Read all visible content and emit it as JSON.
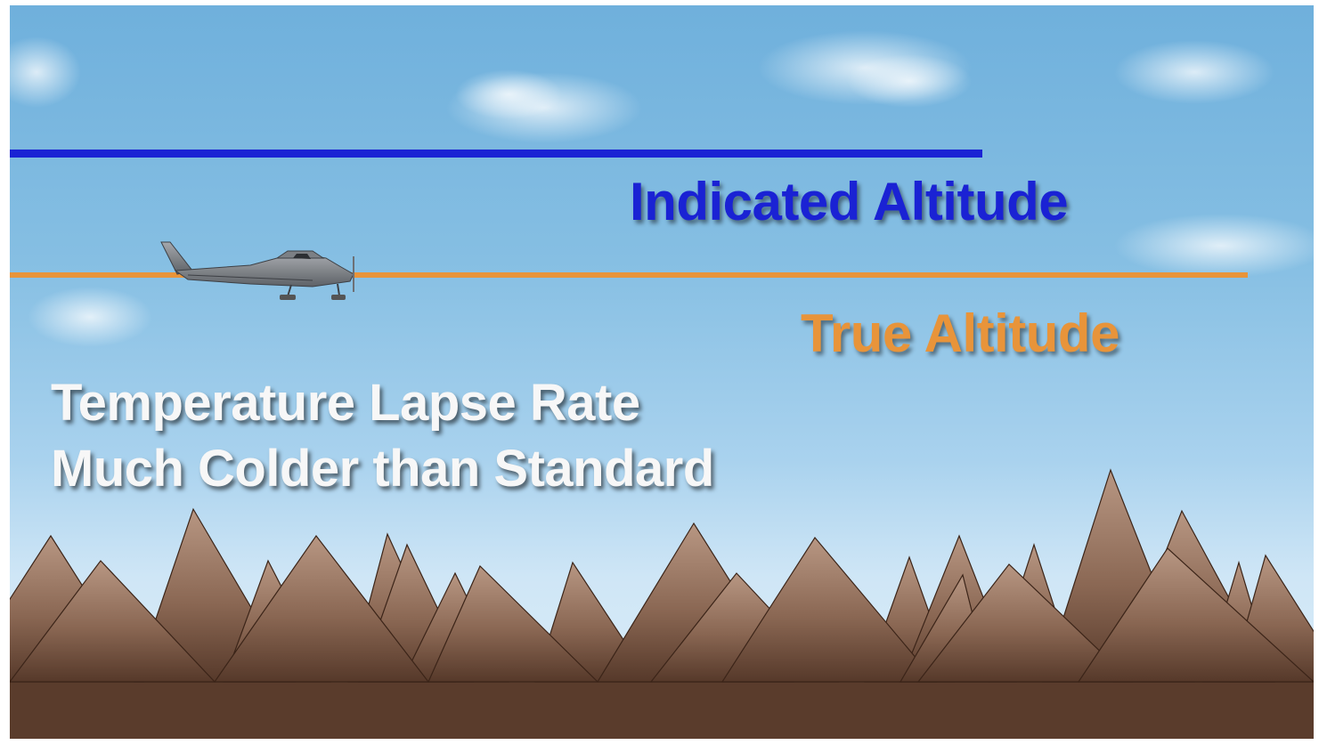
{
  "labels": {
    "indicated_altitude": "Indicated Altitude",
    "true_altitude": "True Altitude"
  },
  "caption": {
    "line1": "Temperature Lapse Rate",
    "line2": "Much Colder than Standard"
  },
  "colors": {
    "indicated_line": "#1a22d4",
    "true_line": "#e8943a",
    "caption_text": "#f7f7f7",
    "ground": "#5a3c2c",
    "mountain_light": "#b08d78",
    "mountain_dark": "#5c3d2b"
  },
  "icons": [
    "airplane-icon"
  ]
}
